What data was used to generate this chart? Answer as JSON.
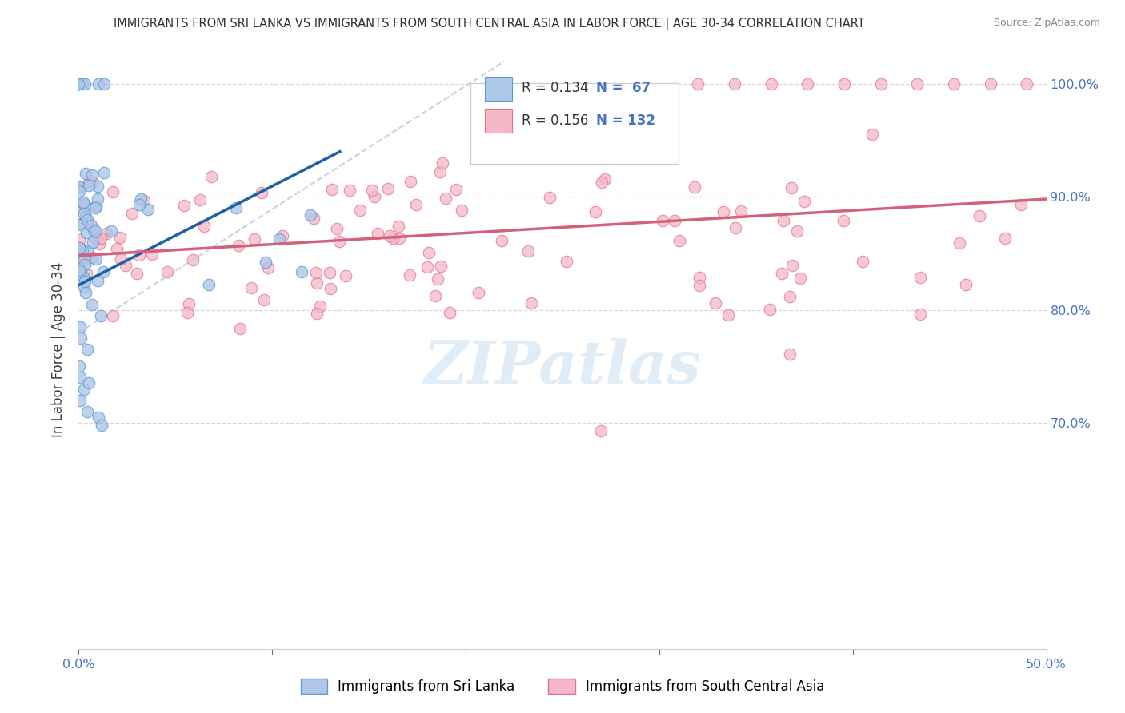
{
  "title": "IMMIGRANTS FROM SRI LANKA VS IMMIGRANTS FROM SOUTH CENTRAL ASIA IN LABOR FORCE | AGE 30-34 CORRELATION CHART",
  "source": "Source: ZipAtlas.com",
  "ylabel": "In Labor Force | Age 30-34",
  "xlim": [
    0.0,
    0.5
  ],
  "ylim": [
    0.5,
    1.03
  ],
  "sri_lanka_color": "#aec6e8",
  "sri_lanka_edge": "#5b9bd5",
  "sca_color": "#f4b8c8",
  "sca_edge": "#e07090",
  "trend_blue": "#1f5fa6",
  "trend_pink": "#d4607a",
  "diagonal_color": "#b8c8d8",
  "background": "#ffffff",
  "grid_color": "#d8d8d8",
  "title_color": "#303030",
  "axis_label_color": "#404040",
  "tick_color_right": "#4472c4",
  "tick_color_bottom": "#4472c4",
  "legend_color": "#4472c4",
  "watermark_color": "#cce0f0"
}
